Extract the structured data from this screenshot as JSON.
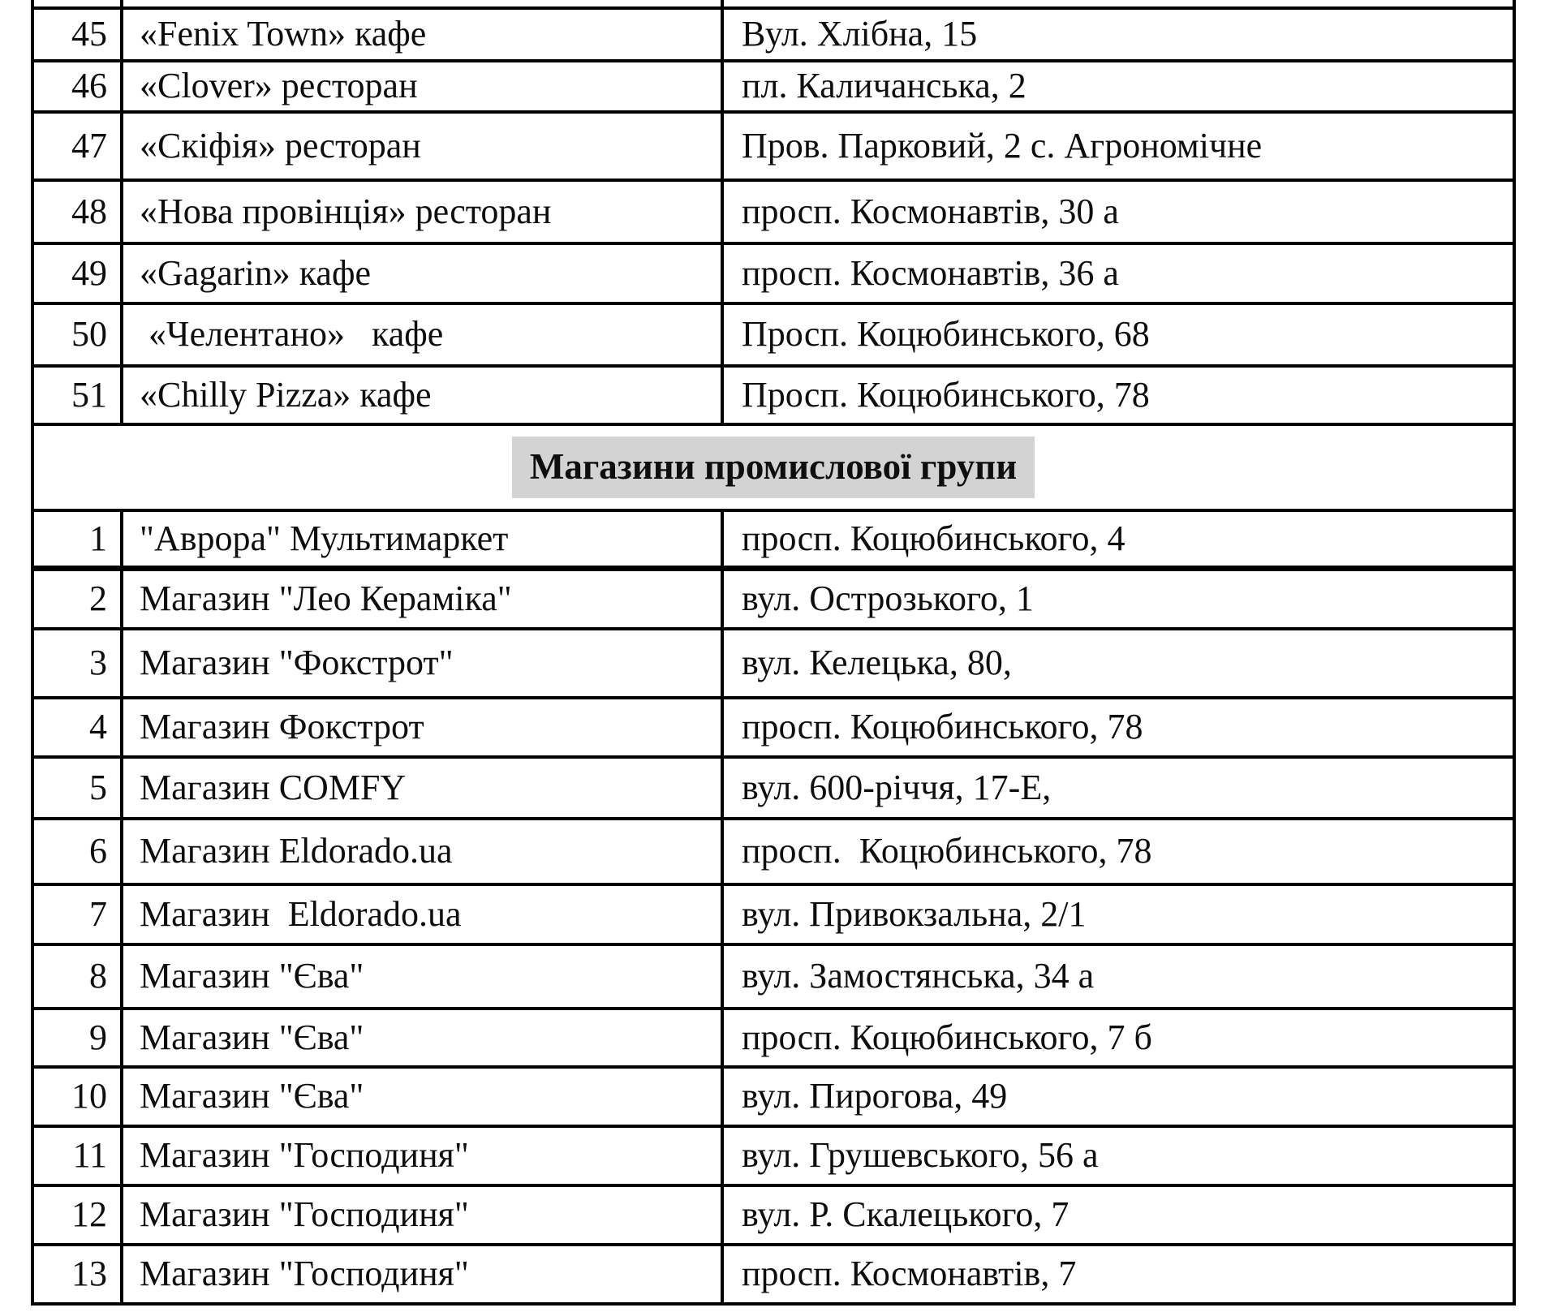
{
  "colors": {
    "background": "#ffffff",
    "text": "#0e0e0e",
    "border": "#000000",
    "section_highlight": "#d3d3d3"
  },
  "table": {
    "cafes": {
      "rows": [
        {
          "num": "45",
          "name": "«Fenix Town» кафе",
          "address": "Вул. Хлібна, 15"
        },
        {
          "num": "46",
          "name": "«Clover» ресторан",
          "address": "пл. Каличанська, 2"
        },
        {
          "num": "47",
          "name": "«Скіфія» ресторан",
          "address": "Пров. Парковий, 2 с. Агрономічне"
        },
        {
          "num": "48",
          "name": "«Нова провінція» ресторан",
          "address": "просп. Космонавтів, 30 а"
        },
        {
          "num": "49",
          "name": "«Gagarin» кафе",
          "address": "просп. Космонавтів, 36 а"
        },
        {
          "num": "50",
          "name": " «Челентано»   кафе",
          "address": "Просп. Коцюбинського, 68"
        },
        {
          "num": "51",
          "name": "«Chilly Pizza» кафе",
          "address": "Просп. Коцюбинського, 78"
        }
      ]
    },
    "section_header": "Магазини промислової групи",
    "shops": {
      "rows": [
        {
          "num": "1",
          "name": "\"Аврора\" Мультимаркет",
          "address": "просп. Коцюбинського, 4"
        },
        {
          "num": "2",
          "name": "Магазин \"Лео Кераміка\"",
          "address": "вул. Острозького, 1"
        },
        {
          "num": "3",
          "name": "Магазин \"Фокстрот\"",
          "address": "вул. Келецька, 80,"
        },
        {
          "num": "4",
          "name": "Магазин Фокстрот",
          "address": "просп. Коцюбинського, 78"
        },
        {
          "num": "5",
          "name": "Магазин COMFY",
          "address": "вул. 600-річчя, 17-Е,"
        },
        {
          "num": "6",
          "name": "Магазин Eldorado.ua",
          "address": "просп.  Коцюбинського, 78"
        },
        {
          "num": "7",
          "name": "Магазин  Eldorado.ua",
          "address": "вул. Привокзальна, 2/1"
        },
        {
          "num": "8",
          "name": "Магазин \"Єва\"",
          "address": "вул. Замостянська, 34 а"
        },
        {
          "num": "9",
          "name": "Магазин \"Єва\"",
          "address": "просп. Коцюбинського, 7 б"
        },
        {
          "num": "10",
          "name": "Магазин \"Єва\"",
          "address": "вул. Пирогова, 49"
        },
        {
          "num": "11",
          "name": "Магазин \"Господиня\"",
          "address": "вул. Грушевського, 56 а"
        },
        {
          "num": "12",
          "name": "Магазин \"Господиня\"",
          "address": "вул. Р. Скалецького, 7"
        },
        {
          "num": "13",
          "name": "Магазин \"Господиня\"",
          "address": "просп. Космонавтів, 7"
        }
      ]
    }
  }
}
